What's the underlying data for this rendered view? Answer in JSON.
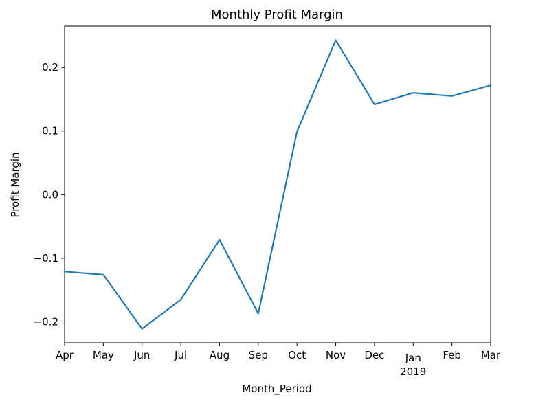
{
  "chart_data": {
    "type": "line",
    "title": "Monthly Profit Margin",
    "xlabel": "Month_Period",
    "ylabel": "Profit Margin",
    "categories": [
      "Apr",
      "May",
      "Jun",
      "Jul",
      "Aug",
      "Sep",
      "Oct",
      "Nov",
      "Dec",
      "Jan",
      "Feb",
      "Mar"
    ],
    "year_label": "2019",
    "series": [
      {
        "color": "#1f77b4",
        "values": [
          -0.121,
          -0.126,
          -0.211,
          -0.165,
          -0.071,
          -0.187,
          0.099,
          0.243,
          0.142,
          0.16,
          0.155,
          0.172
        ]
      }
    ],
    "ylim": [
      -0.233,
      0.265
    ],
    "yticks": [
      -0.2,
      -0.1,
      0.0,
      0.1,
      0.2
    ],
    "ytick_labels": [
      "−0.2",
      "−0.1",
      "0.0",
      "0.1",
      "0.2"
    ],
    "grid": false,
    "legend": "none"
  }
}
